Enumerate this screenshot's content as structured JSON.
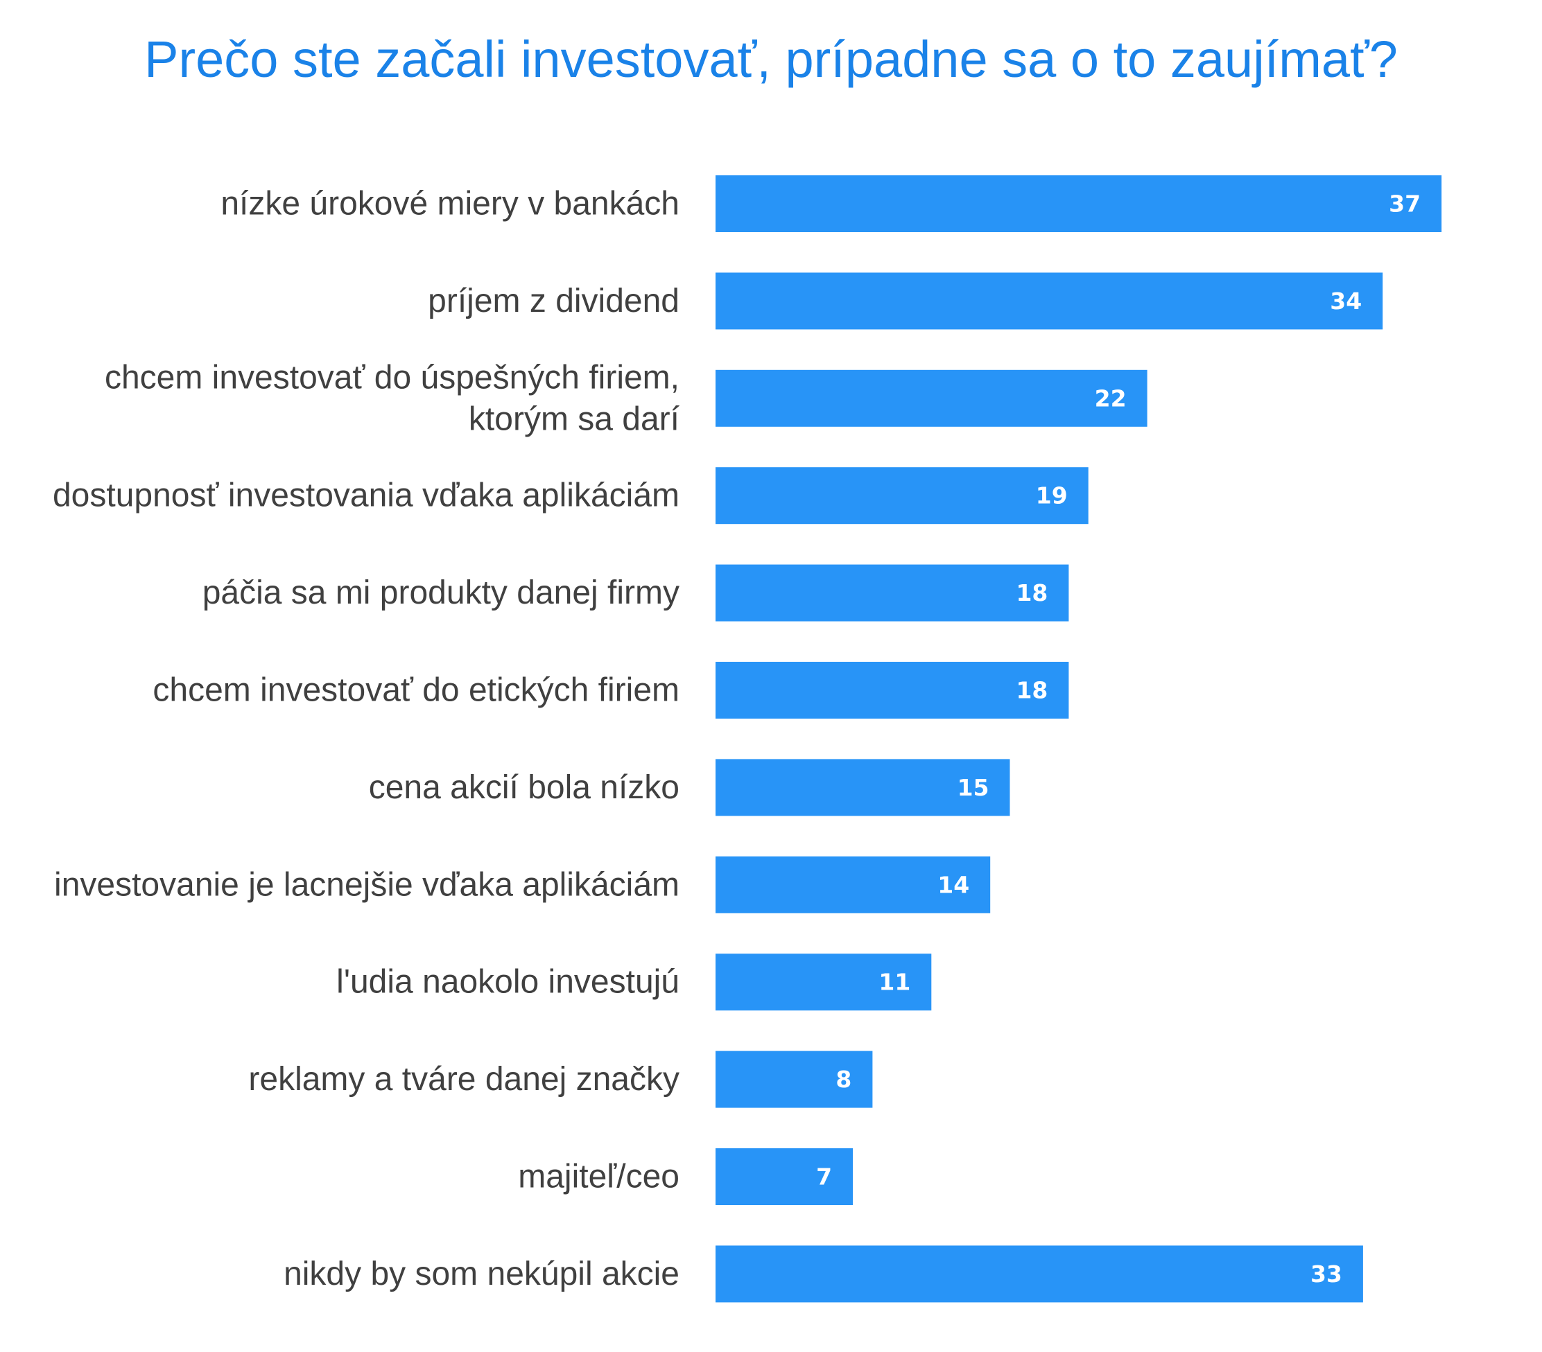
{
  "colors": {
    "title": "#1a82e8",
    "bar": "#2894f7",
    "label": "#404040",
    "value_label": "#ffffff"
  },
  "chart_data": {
    "type": "bar",
    "orientation": "horizontal",
    "title": "Prečo ste začali investovať, prípadne sa o to zaujímať?",
    "xlabel": "",
    "ylabel": "",
    "xlim": [
      0,
      37
    ],
    "grid": false,
    "legend": "none",
    "categories": [
      [
        "nízke úrokové miery v bankách"
      ],
      [
        "príjem z dividend"
      ],
      [
        "chcem investovať do úspešných firiem,",
        "ktorým sa darí"
      ],
      [
        "dostupnosť investovania vďaka aplikáciám"
      ],
      [
        "páčia sa mi produkty danej firmy"
      ],
      [
        "chcem investovať do etických firiem"
      ],
      [
        "cena akcií bola nízko"
      ],
      [
        "investovanie je lacnejšie vďaka aplikáciám"
      ],
      [
        "l'udia naokolo investujú"
      ],
      [
        "reklamy a tváre danej značky"
      ],
      [
        "majiteľ/ceo"
      ],
      [
        "nikdy by som nekúpil akcie"
      ]
    ],
    "values": [
      37,
      34,
      22,
      19,
      18,
      18,
      15,
      14,
      11,
      8,
      7,
      33
    ]
  }
}
